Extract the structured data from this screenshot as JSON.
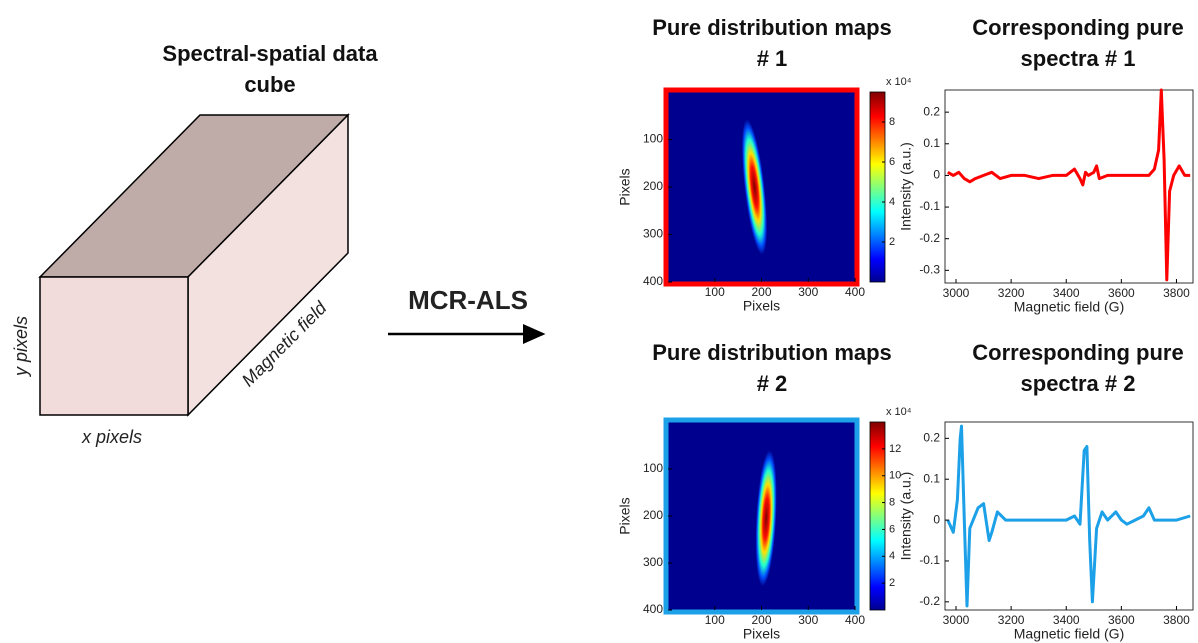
{
  "diagram": {
    "title": "Spectral-spatial data cube",
    "x_label": "x pixels",
    "y_label": "y pixels",
    "z_label": "Magnetic field",
    "method": "MCR-ALS"
  },
  "chart_data": [
    {
      "type": "heatmap",
      "title": "Pure distribution maps # 1",
      "xlabel": "Pixels",
      "ylabel": "Pixels",
      "xlim": [
        0,
        400
      ],
      "ylim": [
        400,
        0
      ],
      "xticks": [
        100,
        200,
        300,
        400
      ],
      "yticks": [
        100,
        200,
        300,
        400
      ],
      "border_color": "#ff0000",
      "colorbar": {
        "label": "x 10⁴",
        "lim": [
          0,
          9.5
        ],
        "ticks": [
          2,
          4,
          6,
          8
        ]
      }
    },
    {
      "type": "line",
      "title": "Corresponding pure spectra # 1",
      "xlabel": "Magnetic field (G)",
      "ylabel": "Intensity (a.u.)",
      "xlim": [
        2960,
        3860
      ],
      "ylim": [
        -0.34,
        0.27
      ],
      "xticks": [
        3000,
        3200,
        3400,
        3600,
        3800
      ],
      "yticks": [
        -0.3,
        -0.2,
        -0.1,
        0,
        0.1,
        0.2
      ],
      "color": "#ff0000",
      "x": [
        2970,
        2990,
        3010,
        3030,
        3050,
        3070,
        3100,
        3130,
        3160,
        3200,
        3250,
        3300,
        3350,
        3400,
        3430,
        3450,
        3460,
        3470,
        3480,
        3500,
        3510,
        3520,
        3550,
        3600,
        3650,
        3700,
        3720,
        3735,
        3745,
        3755,
        3765,
        3775,
        3790,
        3810,
        3830,
        3850
      ],
      "values": [
        0.01,
        0.0,
        0.01,
        -0.01,
        -0.02,
        -0.01,
        0.0,
        0.01,
        -0.01,
        0.0,
        0.0,
        -0.01,
        0.0,
        0.0,
        0.02,
        -0.01,
        -0.03,
        0.01,
        0.0,
        0.01,
        0.03,
        -0.01,
        0.0,
        0.0,
        0.0,
        0.0,
        0.02,
        0.08,
        0.27,
        0.05,
        -0.33,
        -0.05,
        0.0,
        0.03,
        0.0,
        0.0
      ]
    },
    {
      "type": "heatmap",
      "title": "Pure distribution maps # 2",
      "xlabel": "Pixels",
      "ylabel": "Pixels",
      "xlim": [
        0,
        400
      ],
      "ylim": [
        400,
        0
      ],
      "xticks": [
        100,
        200,
        300,
        400
      ],
      "yticks": [
        100,
        200,
        300,
        400
      ],
      "border_color": "#1ca0e8",
      "colorbar": {
        "label": "x 10⁴",
        "lim": [
          0,
          14
        ],
        "ticks": [
          2,
          4,
          6,
          8,
          10,
          12
        ]
      }
    },
    {
      "type": "line",
      "title": "Corresponding pure spectra # 2",
      "xlabel": "Magnetic field (G)",
      "ylabel": "Intensity (a.u.)",
      "xlim": [
        2960,
        3860
      ],
      "ylim": [
        -0.22,
        0.24
      ],
      "xticks": [
        3000,
        3200,
        3400,
        3600,
        3800
      ],
      "yticks": [
        -0.2,
        -0.1,
        0,
        0.1,
        0.2
      ],
      "color": "#1ca0e8",
      "x": [
        2970,
        2990,
        3005,
        3015,
        3020,
        3030,
        3040,
        3050,
        3080,
        3100,
        3120,
        3130,
        3150,
        3180,
        3200,
        3250,
        3300,
        3350,
        3400,
        3430,
        3450,
        3465,
        3475,
        3485,
        3495,
        3510,
        3530,
        3550,
        3580,
        3600,
        3620,
        3650,
        3680,
        3700,
        3720,
        3750,
        3800,
        3850
      ],
      "values": [
        0,
        -0.03,
        0.05,
        0.2,
        0.23,
        0,
        -0.21,
        -0.02,
        0.03,
        0.04,
        -0.05,
        -0.03,
        0.02,
        0.0,
        0.0,
        0.0,
        0.0,
        0.0,
        0.0,
        0.01,
        -0.01,
        0.17,
        0.18,
        -0.05,
        -0.2,
        -0.02,
        0.02,
        0,
        0.02,
        0,
        -0.01,
        0,
        0.01,
        0.03,
        0,
        0,
        0,
        0.01
      ]
    }
  ]
}
